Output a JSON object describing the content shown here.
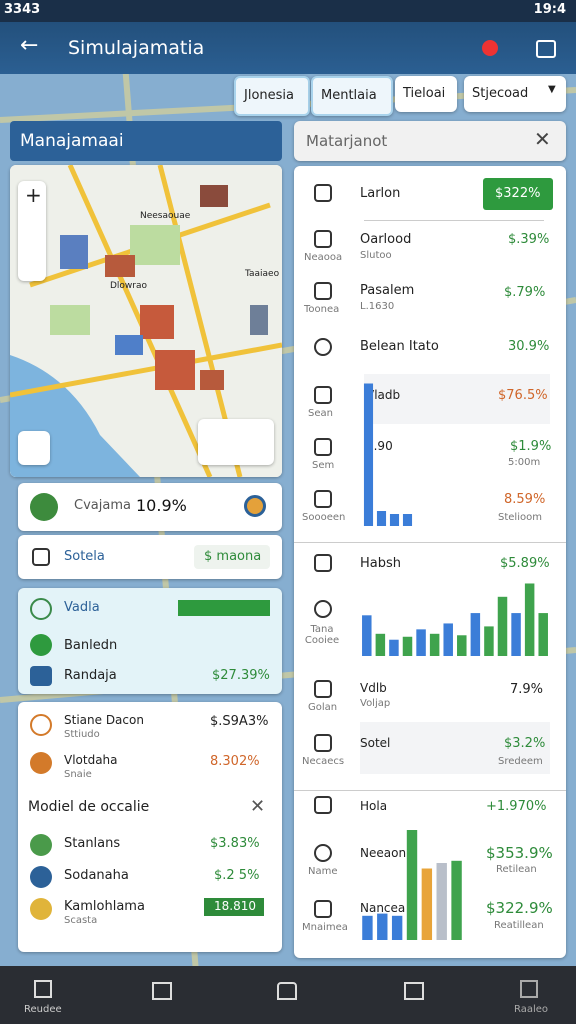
{
  "status": {
    "left": "3343",
    "time": "19:4"
  },
  "appbar": {
    "title": "Simulajamatia"
  },
  "tabs": [
    "Jlonesia",
    "Mentlaia",
    "Tieloai",
    "Stjecoad"
  ],
  "left": {
    "header": "Manajamaai",
    "map_labels": [
      "Neesaouae",
      "Dlowrao",
      "Taaiaeo"
    ],
    "summary": {
      "name": "Cvajama",
      "value": "10.9%"
    },
    "action": {
      "label": "Sotela",
      "button": "$ maona"
    },
    "highlight": [
      {
        "name": "Vadla"
      },
      {
        "name": "Banledn"
      },
      {
        "name": "Randaja",
        "value": "$27.39%"
      }
    ],
    "items": [
      {
        "name": "Stiane Dacon",
        "sub": "Sttiudo",
        "value": "$.S9A3%"
      },
      {
        "name": "Vlotdaha",
        "sub": "Snaie",
        "value": "8.302%"
      }
    ],
    "modal": {
      "title": "Modiel de occalie",
      "items": [
        {
          "name": "Stanlans",
          "value": "$3.83%"
        },
        {
          "name": "Sodanaha",
          "value": "$.2 5%"
        },
        {
          "name": "Kamlohlama",
          "sub": "Scasta",
          "value": "18.810"
        }
      ]
    }
  },
  "right": {
    "search": "Matarjanot",
    "rows": [
      {
        "name": "Larlon",
        "value": "$322%"
      },
      {
        "name": "Oarlood",
        "sub": "Slutoo",
        "value": "$.39%",
        "icon": "Neaooa"
      },
      {
        "name": "Pasalem",
        "sub": "L.1630",
        "value": "$.79%",
        "icon": "Toonea"
      },
      {
        "name": "Belean Itato",
        "value": "30.9%"
      },
      {
        "name": "Vladb",
        "value": "$76.5%",
        "icon": "Sean"
      },
      {
        "name": "S.90",
        "sub": "5:00m",
        "value": "$1.9%",
        "icon": "Sem"
      },
      {
        "sub": "Stelioom",
        "value": "8.59%",
        "icon": "Soooeen"
      },
      {
        "name": "Habsh",
        "value": "$5.89%",
        "icon": "Tana Cooiee"
      },
      {
        "name": "Vdlb",
        "sub": "Voljap",
        "value": "7.9%",
        "icon": "Golan"
      },
      {
        "name": "Sotel",
        "sub": "Sredeem",
        "value": "$3.2%",
        "icon": "Necaecs"
      },
      {
        "name": "Hola",
        "value": "+1.970%"
      },
      {
        "name": "Neeaon",
        "sub": "Retilean",
        "value": "$353.9%",
        "icon": "Name"
      },
      {
        "name": "Nancea",
        "sub": "Reatillean",
        "value": "$322.9%",
        "icon": "Mnaimea"
      }
    ],
    "charts": [
      {
        "ylim": [
          0,
          100
        ],
        "values": [
          95,
          10,
          8,
          8
        ],
        "colors": [
          "#3b7dd8",
          "#3b7dd8",
          "#3b7dd8",
          "#3b7dd8"
        ]
      },
      {
        "ylim": [
          0,
          100
        ],
        "values": [
          55,
          30,
          22,
          26,
          36,
          30,
          44,
          28,
          58,
          40,
          80,
          58,
          98,
          58
        ],
        "colors": [
          "#3b7dd8",
          "#3fa34d",
          "#3b7dd8",
          "#3fa34d",
          "#3b7dd8",
          "#3fa34d",
          "#3b7dd8",
          "#3fa34d",
          "#3b7dd8",
          "#3fa34d",
          "#3fa34d",
          "#3b7dd8",
          "#3fa34d",
          "#3fa34d"
        ]
      },
      {
        "ylim": [
          0,
          100
        ],
        "values": [
          22,
          24,
          22,
          100,
          65,
          70,
          72
        ],
        "colors": [
          "#3b7dd8",
          "#3b7dd8",
          "#3b7dd8",
          "#3fa34d",
          "#e8a43a",
          "#b9bfca",
          "#3fa34d"
        ]
      }
    ]
  },
  "nav": [
    "Reudee",
    "Raaleo"
  ]
}
